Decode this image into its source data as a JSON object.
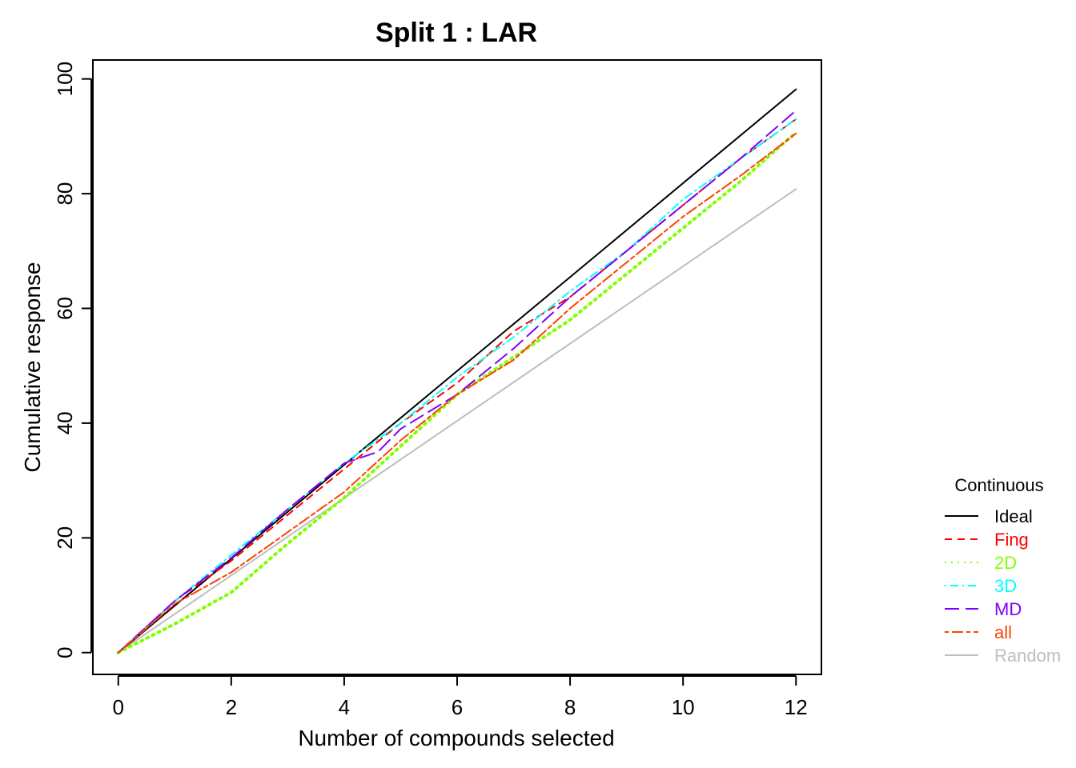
{
  "chart_data": {
    "type": "line",
    "title": "Split 1 : LAR",
    "xlabel": "Number of compounds selected",
    "ylabel": "Cumulative response",
    "xlim": [
      -0.45,
      12.45
    ],
    "ylim": [
      -3.8,
      103.3
    ],
    "xticks": [
      0,
      2,
      4,
      6,
      8,
      10,
      12
    ],
    "yticks": [
      0,
      20,
      40,
      60,
      80,
      100
    ],
    "legend": {
      "title": "Continuous",
      "placement": "right"
    },
    "series": [
      {
        "name": "Ideal",
        "color": "#000000",
        "dash": "solid",
        "x": [
          0,
          12
        ],
        "y": [
          0,
          98.2
        ]
      },
      {
        "name": "Fing",
        "color": "#ff0000",
        "dash": "dashed",
        "x": [
          0,
          1,
          2,
          3,
          4,
          5,
          6,
          7,
          8,
          9,
          10,
          11,
          12
        ],
        "y": [
          0,
          9,
          16,
          24,
          32,
          40,
          47,
          56,
          62,
          70,
          78,
          86,
          93
        ]
      },
      {
        "name": "2D",
        "color": "#80ff00",
        "dash": "dotted",
        "x": [
          0,
          1,
          2,
          3,
          4,
          5,
          6,
          7,
          8,
          9,
          10,
          11,
          12
        ],
        "y": [
          0,
          5,
          10.5,
          19,
          27,
          36,
          45,
          51.5,
          58,
          66,
          74,
          82,
          90.7
        ]
      },
      {
        "name": "3D",
        "color": "#00ffff",
        "dash": "dotdash",
        "x": [
          0,
          1,
          2,
          3,
          4,
          5,
          6,
          7,
          8,
          9,
          10,
          11,
          12
        ],
        "y": [
          0,
          9,
          17,
          25,
          33,
          40,
          48,
          55,
          63,
          70,
          79,
          86,
          93
        ]
      },
      {
        "name": "MD",
        "color": "#8000ff",
        "dash": "longdash",
        "x": [
          0,
          1,
          2,
          3,
          4,
          4.6,
          5,
          6,
          7,
          8,
          9,
          10,
          11,
          12
        ],
        "y": [
          0,
          9,
          16.5,
          25,
          33,
          35,
          39,
          45,
          53,
          62,
          70,
          78,
          86,
          94.5
        ]
      },
      {
        "name": "all",
        "color": "#ff4000",
        "dash": "twodash",
        "x": [
          0,
          1,
          2,
          3,
          4,
          5,
          6,
          7,
          8,
          9,
          10,
          11,
          12
        ],
        "y": [
          0,
          8.5,
          14,
          21,
          28,
          37,
          45,
          51,
          60,
          68,
          76,
          83,
          90.5
        ]
      },
      {
        "name": "Random",
        "color": "#bebebe",
        "dash": "solid",
        "x": [
          0,
          12
        ],
        "y": [
          0,
          80.8
        ]
      }
    ]
  }
}
